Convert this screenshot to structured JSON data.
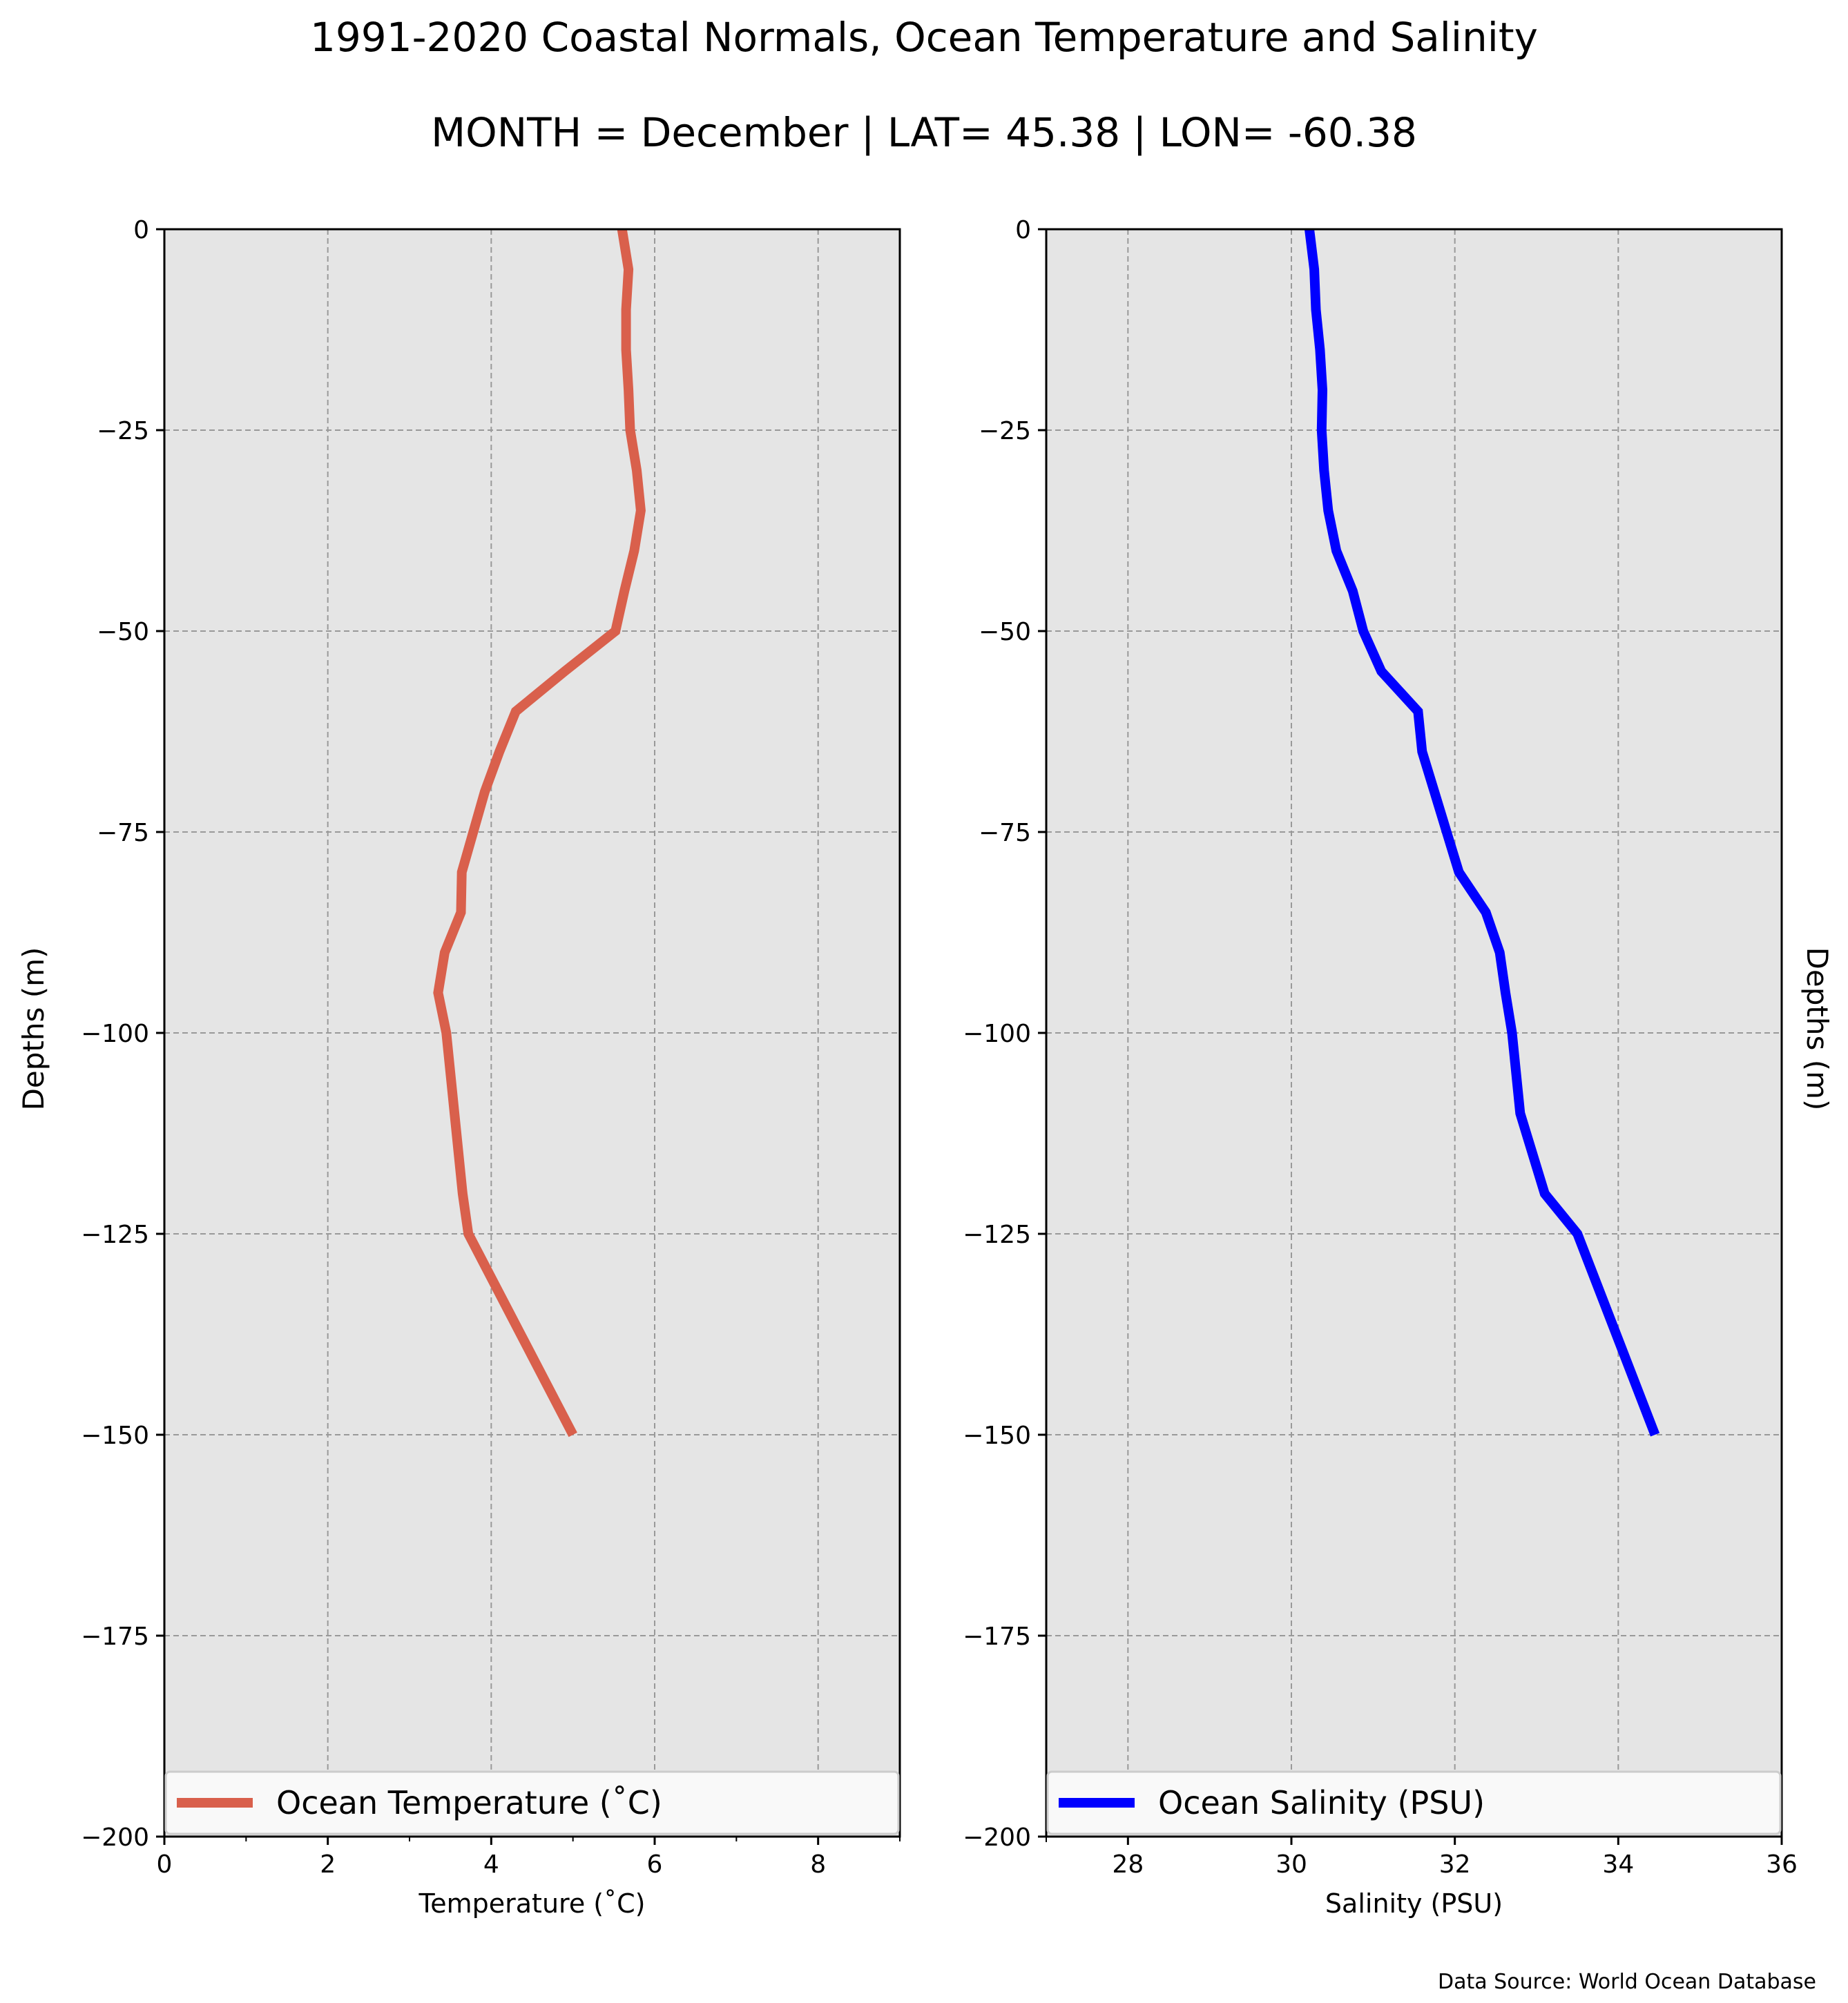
{
  "title": "1991-2020 Coastal Normals, Ocean Temperature and Salinity",
  "subtitle": "MONTH = December | LAT= 45.38 | LON= -60.38",
  "source": "Data Source: World Ocean Database",
  "colors": {
    "temperature": "#d9604c",
    "salinity": "#0000ff",
    "plot_bg": "#e5e5e5",
    "grid": "#999999"
  },
  "chart_data": [
    {
      "type": "line",
      "xlabel": "Temperature ($^\\circ$C)",
      "xlabel_text": "Temperature (˚C)",
      "ylabel": "Depths (m)",
      "xlim": [
        0,
        9
      ],
      "ylim": [
        -200,
        0
      ],
      "xticks": [
        "0",
        "2",
        "4",
        "6",
        "8"
      ],
      "xtick_values": [
        0,
        2,
        4,
        6,
        8
      ],
      "yticks": [
        "0",
        "−25",
        "−50",
        "−75",
        "−100",
        "−125",
        "−150",
        "−175",
        "−200"
      ],
      "ytick_values": [
        0,
        -25,
        -50,
        -75,
        -100,
        -125,
        -150,
        -175,
        -200
      ],
      "grid": true,
      "legend_position": "bottom",
      "series": [
        {
          "name": "Ocean Temperature (˚C)",
          "x": [
            5.6,
            5.68,
            5.65,
            5.65,
            5.68,
            5.7,
            5.78,
            5.83,
            5.75,
            5.63,
            5.52,
            4.9,
            4.3,
            4.1,
            3.92,
            3.78,
            3.64,
            3.63,
            3.43,
            3.35,
            3.45,
            3.55,
            3.65,
            3.72,
            5.0
          ],
          "y": [
            0,
            -5,
            -10,
            -15,
            -20,
            -25,
            -30,
            -35,
            -40,
            -45,
            -50,
            -55,
            -60,
            -65,
            -70,
            -75,
            -80,
            -85,
            -90,
            -95,
            -100,
            -110,
            -120,
            -125,
            -150
          ]
        }
      ]
    },
    {
      "type": "line",
      "xlabel": "Salinity (PSU)",
      "ylabel": "Depths (m)",
      "xlim": [
        27,
        36
      ],
      "ylim": [
        -200,
        0
      ],
      "xticks": [
        "28",
        "30",
        "32",
        "34",
        "36"
      ],
      "xtick_values": [
        28,
        30,
        32,
        34,
        36
      ],
      "yticks": [
        "0",
        "−25",
        "−50",
        "−75",
        "−100",
        "−125",
        "−150",
        "−175",
        "−200"
      ],
      "ytick_values": [
        0,
        -25,
        -50,
        -75,
        -100,
        -125,
        -150,
        -175,
        -200
      ],
      "grid": true,
      "legend_position": "bottom",
      "series": [
        {
          "name": "Ocean Salinity (PSU)",
          "x": [
            30.22,
            30.28,
            30.3,
            30.35,
            30.38,
            30.37,
            30.4,
            30.45,
            30.55,
            30.75,
            30.88,
            31.1,
            31.55,
            31.6,
            31.75,
            31.9,
            32.05,
            32.38,
            32.55,
            32.62,
            32.7,
            32.8,
            33.1,
            33.5,
            34.45
          ],
          "y": [
            0,
            -5,
            -10,
            -15,
            -20,
            -25,
            -30,
            -35,
            -40,
            -45,
            -50,
            -55,
            -60,
            -65,
            -70,
            -75,
            -80,
            -85,
            -90,
            -95,
            -100,
            -110,
            -120,
            -125,
            -150
          ]
        }
      ]
    }
  ]
}
